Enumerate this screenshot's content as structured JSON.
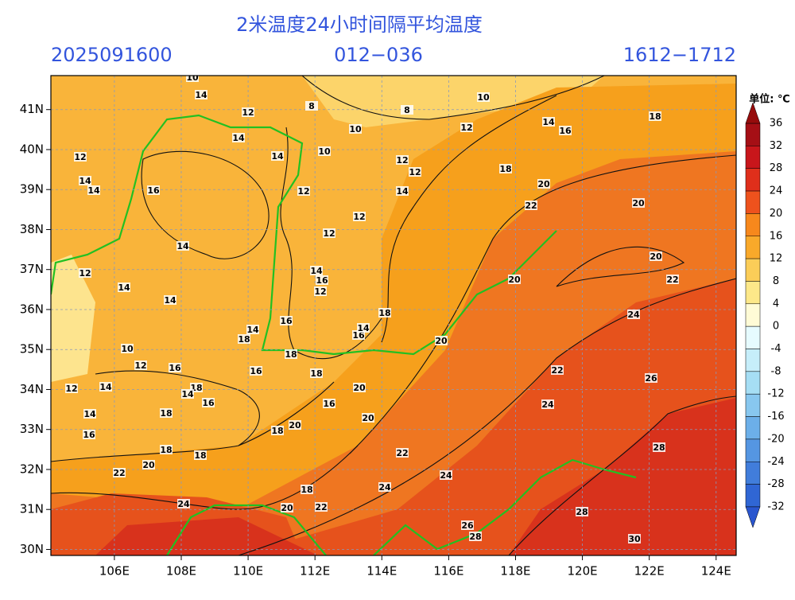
{
  "header": {
    "title": "2米温度24小时间隔平均温度",
    "init": "2025091600",
    "lead": "012−036",
    "period": "1612−1712"
  },
  "map": {
    "xlim": [
      104.1,
      124.6
    ],
    "ylim": [
      29.85,
      41.85
    ],
    "xticks": [
      {
        "value": 106,
        "label": "106E"
      },
      {
        "value": 108,
        "label": "108E"
      },
      {
        "value": 110,
        "label": "110E"
      },
      {
        "value": 112,
        "label": "112E"
      },
      {
        "value": 114,
        "label": "114E"
      },
      {
        "value": 116,
        "label": "116E"
      },
      {
        "value": 118,
        "label": "118E"
      },
      {
        "value": 120,
        "label": "120E"
      },
      {
        "value": 122,
        "label": "122E"
      },
      {
        "value": 124,
        "label": "124E"
      }
    ],
    "yticks": [
      {
        "value": 41,
        "label": "41N"
      },
      {
        "value": 40,
        "label": "40N"
      },
      {
        "value": 39,
        "label": "39N"
      },
      {
        "value": 38,
        "label": "38N"
      },
      {
        "value": 37,
        "label": "37N"
      },
      {
        "value": 36,
        "label": "36N"
      },
      {
        "value": 35,
        "label": "35N"
      },
      {
        "value": 34,
        "label": "34N"
      },
      {
        "value": 33,
        "label": "33N"
      },
      {
        "value": 32,
        "label": "32N"
      },
      {
        "value": 31,
        "label": "31N"
      },
      {
        "value": 30,
        "label": "30N"
      }
    ],
    "grid": true,
    "contour_labels": [
      10,
      14,
      12,
      8,
      8,
      10,
      14,
      16,
      18,
      12,
      14,
      14,
      10,
      10,
      12,
      12,
      12,
      14,
      14,
      16,
      12,
      14,
      18,
      20,
      22,
      20,
      12,
      12,
      14,
      20,
      22,
      12,
      14,
      16,
      12,
      14,
      14,
      20,
      18,
      24,
      16,
      14,
      18,
      16,
      14,
      20,
      10,
      18,
      12,
      16,
      16,
      18,
      22,
      26,
      12,
      14,
      18,
      14,
      16,
      20,
      16,
      24,
      14,
      18,
      20,
      20,
      18,
      16,
      28,
      18,
      18,
      22,
      20,
      22,
      24,
      24,
      18,
      24,
      20,
      22,
      28,
      26,
      28,
      30
    ]
  },
  "colorbar": {
    "unit": "单位: ℃",
    "ticks": [
      36,
      32,
      28,
      24,
      20,
      16,
      12,
      8,
      4,
      0,
      -4,
      -8,
      -12,
      -16,
      -20,
      -24,
      -28,
      -32
    ],
    "colors": [
      "#a50f15",
      "#c8161b",
      "#df2f1b",
      "#ee521d",
      "#f7881c",
      "#f9a92a",
      "#fbcd58",
      "#fde889",
      "#fffbd6",
      "#e6fbff",
      "#c6eefa",
      "#a6def4",
      "#88c7ef",
      "#6cafe9",
      "#5596e2",
      "#417ddb",
      "#3066d4"
    ],
    "over": "#960c0c",
    "under": "#2a56cf"
  }
}
